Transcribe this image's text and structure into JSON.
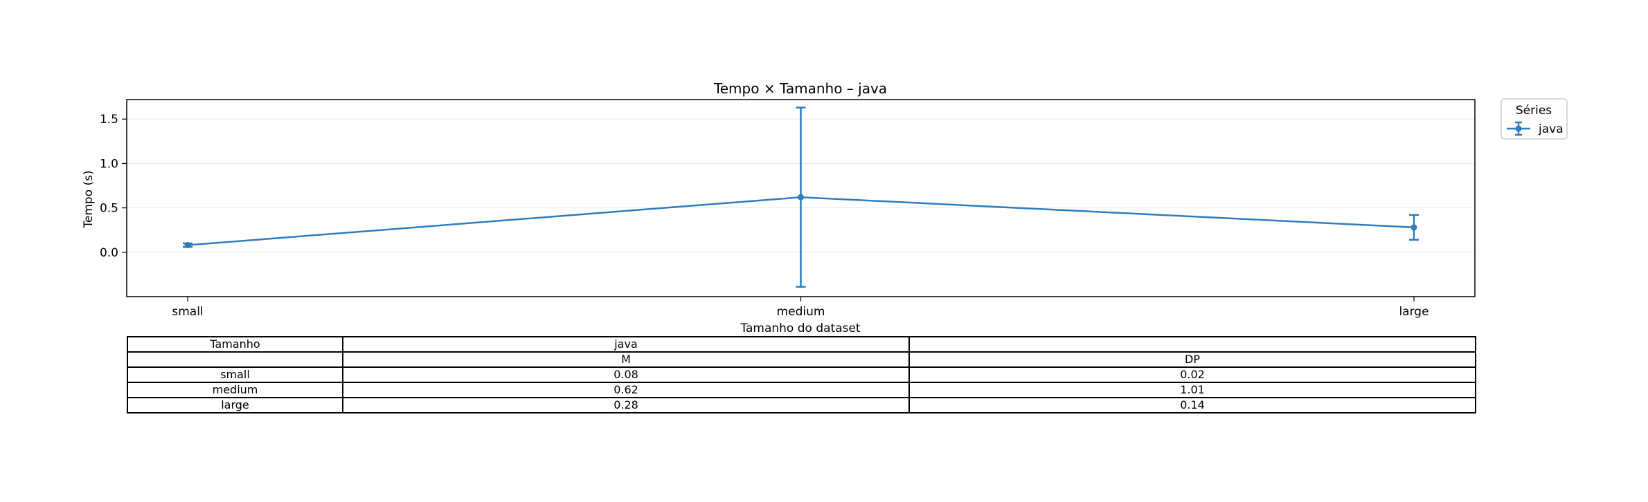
{
  "chart_data": {
    "type": "line",
    "title": "Tempo × Tamanho – java",
    "xlabel": "Tamanho do dataset",
    "ylabel": "Tempo (s)",
    "categories": [
      "small",
      "medium",
      "large"
    ],
    "ylim": [
      -0.5,
      1.72
    ],
    "yticks": [
      0.0,
      0.5,
      1.0,
      1.5
    ],
    "ytick_labels": [
      "0.0",
      "0.5",
      "1.0",
      "1.5"
    ],
    "grid": "horizontal",
    "series": [
      {
        "name": "java",
        "values": [
          0.08,
          0.62,
          0.28
        ],
        "errors": [
          0.02,
          1.01,
          0.14
        ],
        "color": "#2f7bbf"
      }
    ],
    "legend": {
      "title": "Séries",
      "placement": "outside-top-right",
      "entries": [
        "java"
      ]
    }
  },
  "table": {
    "header1": [
      "Tamanho",
      "java",
      ""
    ],
    "header2": [
      "",
      "M",
      "DP"
    ],
    "rows": [
      [
        "small",
        "0.08",
        "0.02"
      ],
      [
        "medium",
        "0.62",
        "1.01"
      ],
      [
        "large",
        "0.28",
        "0.14"
      ]
    ]
  }
}
